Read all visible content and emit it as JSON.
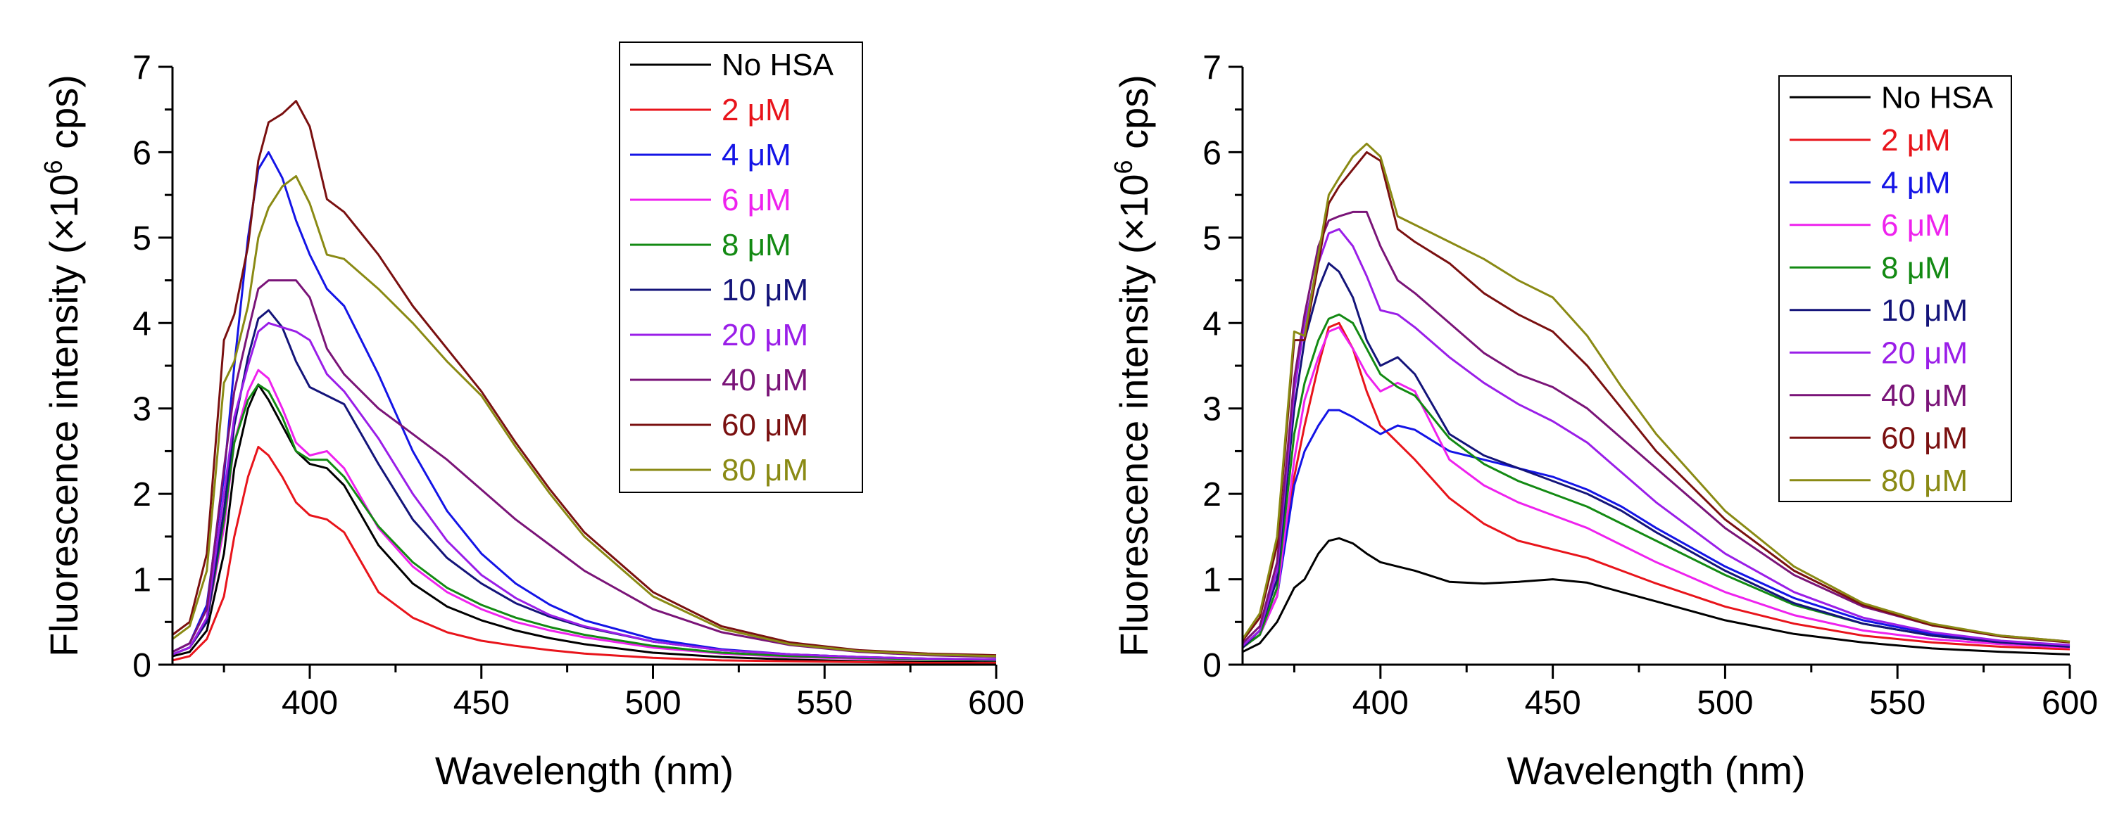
{
  "chart_data": [
    {
      "type": "line",
      "title": "",
      "xlabel": "Wavelength (nm)",
      "ylabel_pre": "Fluorescence intensity (×10",
      "ylabel_sup": "6",
      "ylabel_post": " cps)",
      "xlim": [
        360,
        600
      ],
      "ylim": [
        0,
        7
      ],
      "xticks": [
        400,
        450,
        500,
        550,
        600
      ],
      "yticks": [
        0,
        1,
        2,
        3,
        4,
        5,
        6,
        7
      ],
      "legend_position": "top-right",
      "x": [
        360,
        365,
        370,
        375,
        378,
        382,
        385,
        388,
        392,
        396,
        400,
        405,
        410,
        420,
        430,
        440,
        450,
        460,
        470,
        480,
        500,
        520,
        540,
        560,
        580,
        600
      ],
      "series": [
        {
          "name": "No HSA",
          "color": "#000000",
          "values": [
            0.1,
            0.15,
            0.4,
            1.3,
            2.3,
            3.0,
            3.28,
            3.1,
            2.8,
            2.5,
            2.35,
            2.3,
            2.1,
            1.4,
            0.95,
            0.68,
            0.52,
            0.4,
            0.31,
            0.24,
            0.14,
            0.09,
            0.06,
            0.04,
            0.03,
            0.03
          ]
        },
        {
          "name": "2 μM",
          "color": "#e8141b",
          "values": [
            0.05,
            0.1,
            0.3,
            0.8,
            1.5,
            2.2,
            2.55,
            2.45,
            2.2,
            1.9,
            1.75,
            1.7,
            1.55,
            0.85,
            0.55,
            0.38,
            0.28,
            0.22,
            0.17,
            0.13,
            0.08,
            0.05,
            0.04,
            0.03,
            0.02,
            0.02
          ]
        },
        {
          "name": "4 μM",
          "color": "#1414e6",
          "values": [
            0.15,
            0.25,
            0.7,
            2.2,
            3.5,
            5.0,
            5.8,
            6.0,
            5.7,
            5.2,
            4.8,
            4.4,
            4.2,
            3.4,
            2.5,
            1.8,
            1.3,
            0.95,
            0.7,
            0.52,
            0.3,
            0.18,
            0.12,
            0.09,
            0.07,
            0.06
          ]
        },
        {
          "name": "6 μM",
          "color": "#ee22ee",
          "values": [
            0.12,
            0.2,
            0.5,
            1.6,
            2.6,
            3.2,
            3.45,
            3.35,
            3.0,
            2.6,
            2.45,
            2.5,
            2.3,
            1.6,
            1.15,
            0.85,
            0.65,
            0.5,
            0.4,
            0.32,
            0.2,
            0.13,
            0.09,
            0.07,
            0.06,
            0.05
          ]
        },
        {
          "name": "8 μM",
          "color": "#138a13",
          "values": [
            0.12,
            0.2,
            0.5,
            1.7,
            2.6,
            3.1,
            3.28,
            3.2,
            2.9,
            2.5,
            2.4,
            2.4,
            2.2,
            1.62,
            1.2,
            0.9,
            0.7,
            0.55,
            0.44,
            0.35,
            0.22,
            0.14,
            0.1,
            0.08,
            0.06,
            0.05
          ]
        },
        {
          "name": "10 μM",
          "color": "#14147a",
          "values": [
            0.12,
            0.2,
            0.5,
            1.8,
            2.8,
            3.6,
            4.05,
            4.15,
            3.95,
            3.55,
            3.25,
            3.15,
            3.05,
            2.35,
            1.7,
            1.25,
            0.95,
            0.72,
            0.56,
            0.44,
            0.27,
            0.17,
            0.12,
            0.09,
            0.07,
            0.06
          ]
        },
        {
          "name": "20 μM",
          "color": "#9a1ee8",
          "values": [
            0.12,
            0.2,
            0.55,
            2.0,
            2.9,
            3.5,
            3.9,
            4.0,
            3.95,
            3.9,
            3.8,
            3.4,
            3.2,
            2.65,
            2.0,
            1.45,
            1.05,
            0.78,
            0.58,
            0.45,
            0.27,
            0.17,
            0.12,
            0.09,
            0.07,
            0.06
          ]
        },
        {
          "name": "40 μM",
          "color": "#7a1478",
          "values": [
            0.15,
            0.25,
            0.65,
            2.3,
            3.2,
            3.9,
            4.4,
            4.5,
            4.5,
            4.5,
            4.3,
            3.7,
            3.4,
            3.0,
            2.7,
            2.4,
            2.05,
            1.7,
            1.4,
            1.1,
            0.65,
            0.38,
            0.23,
            0.15,
            0.11,
            0.09
          ]
        },
        {
          "name": "60 μM",
          "color": "#7a1010",
          "values": [
            0.35,
            0.5,
            1.3,
            3.8,
            4.1,
            4.9,
            5.9,
            6.35,
            6.45,
            6.6,
            6.3,
            5.45,
            5.3,
            4.8,
            4.2,
            3.7,
            3.2,
            2.6,
            2.05,
            1.55,
            0.85,
            0.45,
            0.26,
            0.17,
            0.13,
            0.11
          ]
        },
        {
          "name": "80 μM",
          "color": "#8a8a14",
          "values": [
            0.3,
            0.45,
            1.1,
            3.3,
            3.55,
            4.2,
            5.0,
            5.35,
            5.6,
            5.72,
            5.4,
            4.8,
            4.75,
            4.4,
            4.0,
            3.55,
            3.15,
            2.55,
            2.0,
            1.5,
            0.8,
            0.42,
            0.24,
            0.16,
            0.12,
            0.1
          ]
        }
      ]
    },
    {
      "type": "line",
      "title": "",
      "xlabel": "Wavelength (nm)",
      "ylabel_pre": "Fluorescence intensity (×10",
      "ylabel_sup": "6",
      "ylabel_post": " cps)",
      "xlim": [
        360,
        600
      ],
      "ylim": [
        0,
        7
      ],
      "xticks": [
        400,
        450,
        500,
        550,
        600
      ],
      "yticks": [
        0,
        1,
        2,
        3,
        4,
        5,
        6,
        7
      ],
      "legend_position": "top-right",
      "x": [
        360,
        365,
        370,
        375,
        378,
        382,
        385,
        388,
        392,
        396,
        400,
        405,
        410,
        420,
        430,
        440,
        450,
        460,
        470,
        480,
        500,
        520,
        540,
        560,
        580,
        600
      ],
      "series": [
        {
          "name": "No HSA",
          "color": "#000000",
          "values": [
            0.15,
            0.25,
            0.5,
            0.9,
            1.0,
            1.3,
            1.45,
            1.48,
            1.42,
            1.3,
            1.2,
            1.15,
            1.1,
            0.97,
            0.95,
            0.97,
            1.0,
            0.96,
            0.85,
            0.74,
            0.52,
            0.36,
            0.26,
            0.19,
            0.15,
            0.12
          ]
        },
        {
          "name": "2 μM",
          "color": "#e8141b",
          "values": [
            0.2,
            0.35,
            0.8,
            2.2,
            2.8,
            3.5,
            3.95,
            4.0,
            3.7,
            3.2,
            2.8,
            2.6,
            2.4,
            1.95,
            1.65,
            1.45,
            1.35,
            1.25,
            1.1,
            0.95,
            0.68,
            0.48,
            0.34,
            0.26,
            0.21,
            0.18
          ]
        },
        {
          "name": "4 μM",
          "color": "#1414e6",
          "values": [
            0.2,
            0.35,
            0.8,
            2.1,
            2.5,
            2.8,
            2.98,
            2.98,
            2.9,
            2.8,
            2.7,
            2.8,
            2.75,
            2.5,
            2.4,
            2.3,
            2.2,
            2.05,
            1.85,
            1.6,
            1.15,
            0.78,
            0.52,
            0.36,
            0.27,
            0.22
          ]
        },
        {
          "name": "6 μM",
          "color": "#ee22ee",
          "values": [
            0.2,
            0.35,
            0.8,
            2.4,
            3.1,
            3.6,
            3.9,
            3.95,
            3.7,
            3.4,
            3.2,
            3.3,
            3.2,
            2.4,
            2.1,
            1.9,
            1.75,
            1.6,
            1.4,
            1.2,
            0.85,
            0.58,
            0.4,
            0.3,
            0.24,
            0.2
          ]
        },
        {
          "name": "8 μM",
          "color": "#138a13",
          "values": [
            0.2,
            0.35,
            0.9,
            2.7,
            3.3,
            3.8,
            4.05,
            4.1,
            4.0,
            3.7,
            3.4,
            3.25,
            3.15,
            2.65,
            2.35,
            2.15,
            2.0,
            1.85,
            1.65,
            1.45,
            1.05,
            0.7,
            0.48,
            0.34,
            0.26,
            0.21
          ]
        },
        {
          "name": "10 μM",
          "color": "#14147a",
          "values": [
            0.2,
            0.4,
            1.0,
            3.0,
            3.8,
            4.4,
            4.7,
            4.6,
            4.3,
            3.8,
            3.5,
            3.6,
            3.4,
            2.7,
            2.45,
            2.3,
            2.15,
            2.0,
            1.8,
            1.55,
            1.1,
            0.72,
            0.48,
            0.34,
            0.26,
            0.21
          ]
        },
        {
          "name": "20 μM",
          "color": "#9a1ee8",
          "values": [
            0.22,
            0.4,
            1.1,
            3.2,
            4.0,
            4.7,
            5.05,
            5.1,
            4.9,
            4.55,
            4.15,
            4.1,
            3.95,
            3.6,
            3.3,
            3.05,
            2.85,
            2.6,
            2.25,
            1.9,
            1.3,
            0.85,
            0.55,
            0.38,
            0.28,
            0.23
          ]
        },
        {
          "name": "40 μM",
          "color": "#7a1478",
          "values": [
            0.25,
            0.45,
            1.2,
            3.35,
            4.1,
            4.9,
            5.2,
            5.25,
            5.3,
            5.3,
            4.9,
            4.5,
            4.35,
            4.0,
            3.65,
            3.4,
            3.25,
            3.0,
            2.65,
            2.3,
            1.6,
            1.05,
            0.68,
            0.46,
            0.34,
            0.27
          ]
        },
        {
          "name": "60 μM",
          "color": "#7a1010",
          "values": [
            0.28,
            0.55,
            1.4,
            3.8,
            3.8,
            4.7,
            5.4,
            5.6,
            5.8,
            6.0,
            5.9,
            5.1,
            4.95,
            4.7,
            4.35,
            4.1,
            3.9,
            3.5,
            3.0,
            2.5,
            1.7,
            1.1,
            0.7,
            0.46,
            0.33,
            0.26
          ]
        },
        {
          "name": "80 μM",
          "color": "#8a8a14",
          "values": [
            0.3,
            0.6,
            1.5,
            3.9,
            3.85,
            4.8,
            5.5,
            5.7,
            5.95,
            6.1,
            5.95,
            5.25,
            5.15,
            4.95,
            4.75,
            4.5,
            4.3,
            3.85,
            3.25,
            2.7,
            1.8,
            1.15,
            0.72,
            0.48,
            0.34,
            0.27
          ]
        }
      ]
    }
  ]
}
